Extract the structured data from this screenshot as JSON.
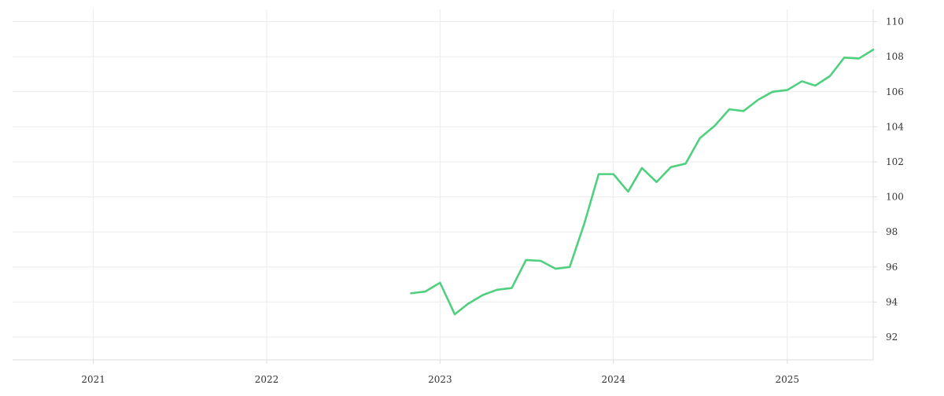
{
  "chart_data": {
    "type": "line",
    "title": "",
    "xlabel": "",
    "ylabel": "",
    "x_tick_labels": [
      "2021",
      "2022",
      "2023",
      "2024",
      "2025"
    ],
    "y_tick_labels": [
      "92",
      "94",
      "96",
      "98",
      "100",
      "102",
      "104",
      "106",
      "108",
      "110"
    ],
    "xlim": [
      "2020-07-15",
      "2025-07-01"
    ],
    "ylim": [
      90.7,
      110.7
    ],
    "grid": true,
    "colors": {
      "line": "#4fd07f",
      "grid": "#ebebeb",
      "axis": "#dddddd",
      "text": "#333333"
    },
    "series": [
      {
        "x": [
          "2022-11-01",
          "2022-12-01",
          "2023-01-01",
          "2023-02-01",
          "2023-03-01",
          "2023-04-01",
          "2023-05-01",
          "2023-06-01",
          "2023-07-01",
          "2023-08-01",
          "2023-09-01",
          "2023-10-01",
          "2023-11-01",
          "2023-12-01",
          "2024-01-01",
          "2024-02-01",
          "2024-03-01",
          "2024-04-01",
          "2024-05-01",
          "2024-06-01",
          "2024-07-01",
          "2024-08-01",
          "2024-09-01",
          "2024-10-01",
          "2024-11-01",
          "2024-12-01",
          "2025-01-01",
          "2025-02-01",
          "2025-03-01",
          "2025-04-01",
          "2025-05-01",
          "2025-06-01",
          "2025-07-01"
        ],
        "values": [
          94.5,
          94.6,
          95.1,
          93.3,
          93.9,
          94.4,
          94.7,
          94.8,
          96.4,
          96.35,
          95.9,
          96.0,
          98.5,
          101.3,
          101.3,
          100.3,
          101.65,
          100.85,
          101.7,
          101.9,
          103.35,
          104.05,
          105.0,
          104.9,
          105.55,
          106.0,
          106.1,
          106.6,
          106.35,
          106.9,
          107.95,
          107.9,
          108.4
        ]
      }
    ]
  }
}
